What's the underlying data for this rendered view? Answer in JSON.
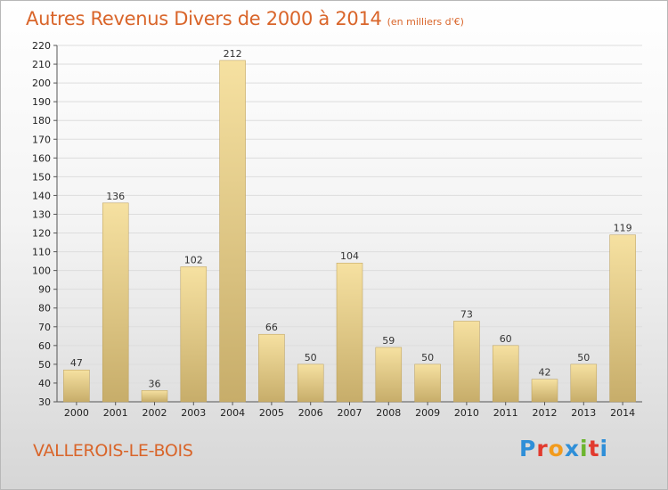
{
  "header": {
    "title": "Autres Revenus Divers de 2000 à 2014",
    "subtitle": "(en milliers d'€)"
  },
  "footer": {
    "town": "VALLEROIS-LE-BOIS",
    "logo": {
      "letters": [
        "P",
        "r",
        "o",
        "x",
        "i",
        "t",
        "i"
      ],
      "colors": [
        "#2f8fd8",
        "#e23a2e",
        "#f29b1d",
        "#2f8fd8",
        "#6bb52e",
        "#e23a2e",
        "#2f8fd8"
      ]
    }
  },
  "colors": {
    "title": "#d9652a",
    "bar_light": "#f6e1a1",
    "bar_dark": "#c7ad6a",
    "grid": "#dddddd"
  },
  "chart_data": {
    "type": "bar",
    "title": "Autres Revenus Divers de 2000 à 2014",
    "subtitle": "(en milliers d'€)",
    "categories": [
      "2000",
      "2001",
      "2002",
      "2003",
      "2004",
      "2005",
      "2006",
      "2007",
      "2008",
      "2009",
      "2010",
      "2011",
      "2012",
      "2013",
      "2014"
    ],
    "values": [
      47,
      136,
      36,
      102,
      212,
      66,
      50,
      104,
      59,
      50,
      73,
      60,
      42,
      50,
      119
    ],
    "ylim": [
      30,
      220
    ],
    "yticks": [
      30,
      40,
      50,
      60,
      70,
      80,
      90,
      100,
      110,
      120,
      130,
      140,
      150,
      160,
      170,
      180,
      190,
      200,
      210,
      220
    ],
    "grid": true,
    "legend": "none"
  }
}
